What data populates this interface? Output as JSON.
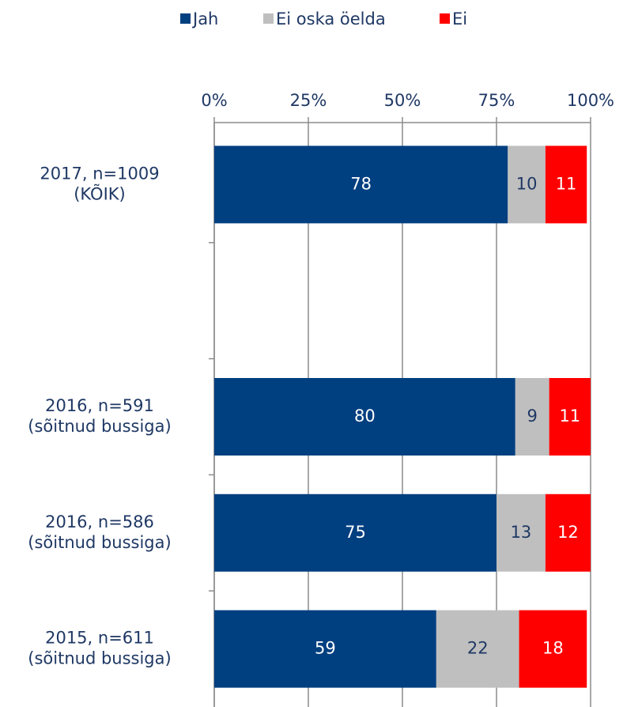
{
  "chart_data": {
    "type": "stacked-bar-horizontal",
    "categories": [
      [
        "2017, n=1009",
        "(KÕIK)"
      ],
      null,
      [
        "2016, n=591",
        "(sõitnud bussiga)"
      ],
      [
        "2016, n=586",
        "(sõitnud bussiga)"
      ],
      [
        "2015, n=611",
        "(sõitnud bussiga)"
      ]
    ],
    "series": [
      {
        "name": "Jah",
        "color": "#003f80",
        "values": [
          78,
          null,
          80,
          75,
          59
        ]
      },
      {
        "name": "Ei oska öelda",
        "color": "#bfbfbf",
        "values": [
          10,
          null,
          9,
          13,
          22
        ]
      },
      {
        "name": "Ei",
        "color": "#ff0000",
        "values": [
          11,
          null,
          11,
          12,
          18
        ]
      }
    ],
    "xlim": [
      0,
      100
    ],
    "xticks": [
      {
        "value": 0,
        "label": "0%"
      },
      {
        "value": 25,
        "label": "25%"
      },
      {
        "value": 50,
        "label": "50%"
      },
      {
        "value": 75,
        "label": "75%"
      },
      {
        "value": 100,
        "label": "100%"
      }
    ],
    "grid": true,
    "legend": "top"
  }
}
